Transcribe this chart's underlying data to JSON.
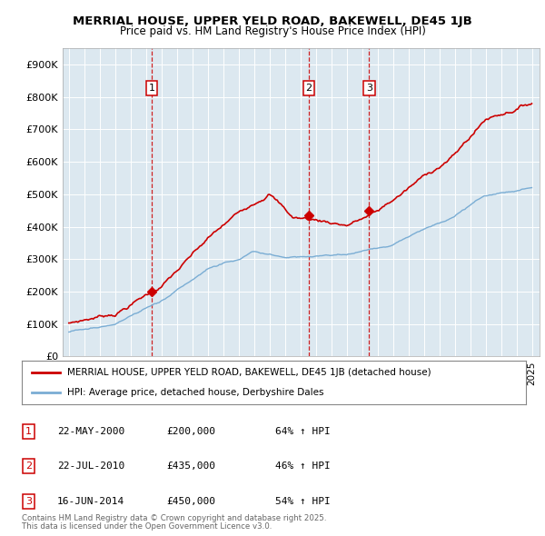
{
  "title": "MERRIAL HOUSE, UPPER YELD ROAD, BAKEWELL, DE45 1JB",
  "subtitle": "Price paid vs. HM Land Registry's House Price Index (HPI)",
  "ylim": [
    0,
    950000
  ],
  "yticks": [
    0,
    100000,
    200000,
    300000,
    400000,
    500000,
    600000,
    700000,
    800000,
    900000
  ],
  "ytick_labels": [
    "£0",
    "£100K",
    "£200K",
    "£300K",
    "£400K",
    "£500K",
    "£600K",
    "£700K",
    "£800K",
    "£900K"
  ],
  "xlim_start": 1994.6,
  "xlim_end": 2025.5,
  "red_color": "#cc0000",
  "blue_color": "#7aadd4",
  "dashed_color": "#cc0000",
  "grid_color": "#c8d8e8",
  "bg_color": "#dce8f0",
  "plot_bg": "#dce8f0",
  "outer_bg": "#ffffff",
  "sale_points": [
    {
      "year": 2000.38,
      "value": 200000,
      "label": "1"
    },
    {
      "year": 2010.55,
      "value": 435000,
      "label": "2"
    },
    {
      "year": 2014.46,
      "value": 450000,
      "label": "3"
    }
  ],
  "legend_entries": [
    "MERRIAL HOUSE, UPPER YELD ROAD, BAKEWELL, DE45 1JB (detached house)",
    "HPI: Average price, detached house, Derbyshire Dales"
  ],
  "table_rows": [
    {
      "num": "1",
      "date": "22-MAY-2000",
      "price": "£200,000",
      "hpi": "64% ↑ HPI"
    },
    {
      "num": "2",
      "date": "22-JUL-2010",
      "price": "£435,000",
      "hpi": "46% ↑ HPI"
    },
    {
      "num": "3",
      "date": "16-JUN-2014",
      "price": "£450,000",
      "hpi": "54% ↑ HPI"
    }
  ],
  "footnote1": "Contains HM Land Registry data © Crown copyright and database right 2025.",
  "footnote2": "This data is licensed under the Open Government Licence v3.0."
}
